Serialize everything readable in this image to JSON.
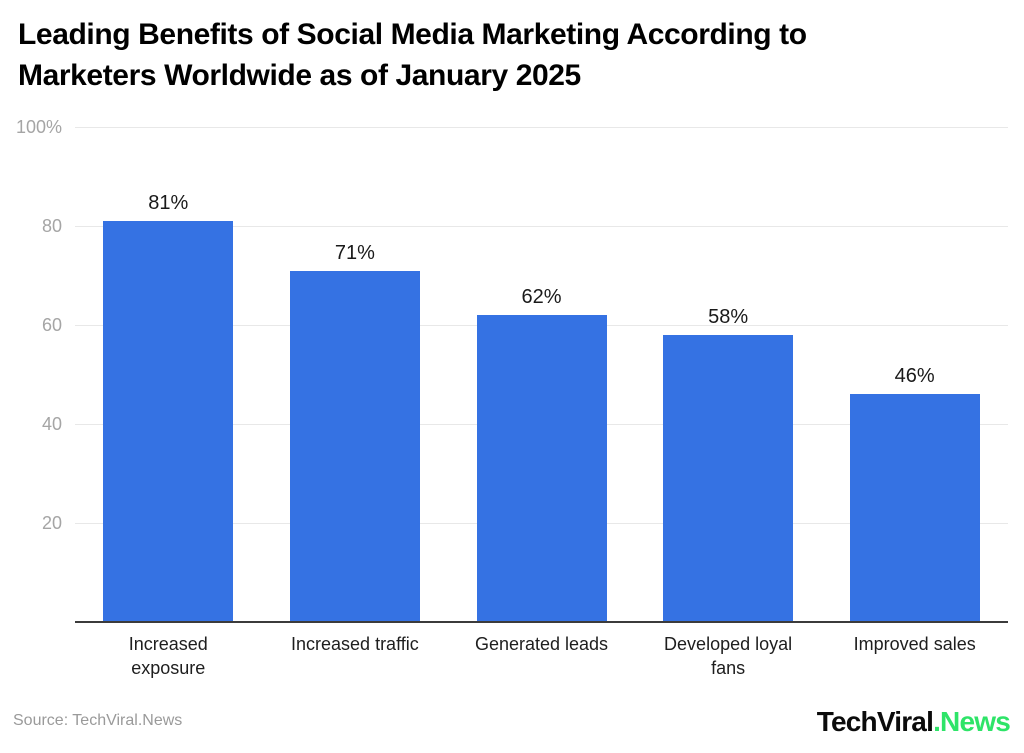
{
  "header": {
    "title_line1": "Leading Benefits of Social Media Marketing According to",
    "title_line2": "Marketers Worldwide as of January 2025"
  },
  "chart_data": {
    "type": "bar",
    "title": "Leading Benefits of Social Media Marketing According to Marketers Worldwide as of January 2025",
    "categories": [
      "Increased exposure",
      "Increased traffic",
      "Generated leads",
      "Developed loyal fans",
      "Improved sales"
    ],
    "category_lines": [
      [
        "Increased",
        "exposure"
      ],
      [
        "Increased traffic"
      ],
      [
        "Generated leads"
      ],
      [
        "Developed loyal",
        "fans"
      ],
      [
        "Improved sales"
      ]
    ],
    "values": [
      81,
      71,
      62,
      58,
      46
    ],
    "value_labels": [
      "81%",
      "71%",
      "62%",
      "58%",
      "46%"
    ],
    "xlabel": "",
    "ylabel": "",
    "ylim": [
      0,
      100
    ],
    "yticks": [
      {
        "value": 100,
        "label": "100%"
      },
      {
        "value": 80,
        "label": "80"
      },
      {
        "value": 60,
        "label": "60"
      },
      {
        "value": 40,
        "label": "40"
      },
      {
        "value": 20,
        "label": "20"
      }
    ],
    "grid": true,
    "legend": "none",
    "bar_color": "#3572E3"
  },
  "colors": {
    "bar": "#3572E3",
    "gridline": "#E8E8E8",
    "axis_line": "#3B3B3B",
    "y_tick_text": "#A5A5A5",
    "category_text": "#1E1E1E",
    "value_text": "#1A1A1A",
    "title_text": "#000000",
    "source_text": "#9A9A9A",
    "logo_primary": "#0B0B0B",
    "logo_accent": "#2EE468"
  },
  "footer": {
    "source": "Source: TechViral.News",
    "logo_primary": "TechViral",
    "logo_accent": ".News"
  }
}
